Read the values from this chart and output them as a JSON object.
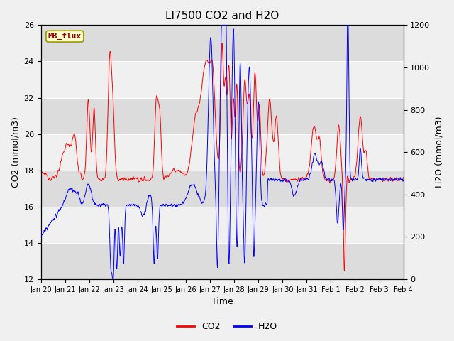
{
  "title": "LI7500 CO2 and H2O",
  "xlabel": "Time",
  "ylabel_left": "CO2 (mmol/m3)",
  "ylabel_right": "H2O (mmol/m3)",
  "ylim_left": [
    12,
    26
  ],
  "ylim_right": [
    0,
    1200
  ],
  "yticks_left": [
    12,
    14,
    16,
    18,
    20,
    22,
    24,
    26
  ],
  "yticks_right": [
    0,
    200,
    400,
    600,
    800,
    1000,
    1200
  ],
  "xtick_labels": [
    "Jan 20",
    "Jan 21",
    "Jan 22",
    "Jan 23",
    "Jan 24",
    "Jan 25",
    "Jan 26",
    "Jan 27",
    "Jan 28",
    "Jan 29",
    "Jan 30",
    "Jan 31",
    "Feb 1",
    "Feb 2",
    "Feb 3",
    "Feb 4"
  ],
  "annotation_text": "MB_flux",
  "annotation_bg": "#ffffcc",
  "annotation_border": "#999900",
  "annotation_text_color": "#8b0000",
  "co2_color": "#ff0000",
  "h2o_color": "#0000ff",
  "legend_co2": "CO2",
  "legend_h2o": "H2O",
  "plot_bg": "#f0f0f0",
  "band_dark": "#dcdcdc",
  "band_light": "#f0f0f0",
  "grid_color": "#ffffff",
  "title_fontsize": 11,
  "axis_fontsize": 9,
  "tick_fontsize": 8,
  "legend_fontsize": 9
}
